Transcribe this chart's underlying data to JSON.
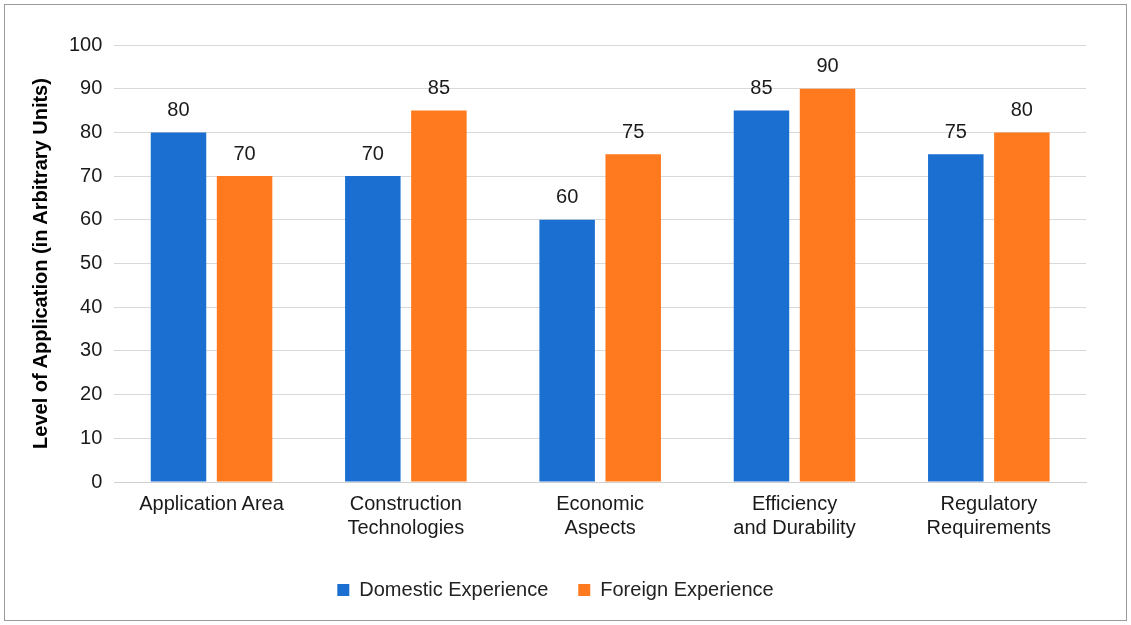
{
  "chart_data": {
    "type": "bar",
    "ylabel": "Level of Application (in Arbitrary Units)",
    "categories": [
      "Application Area",
      "Construction Technologies",
      "Economic Aspects",
      "Efficiency and Durability",
      "Regulatory Requirements"
    ],
    "series": [
      {
        "name": "Domestic Experience",
        "color": "#1a6fd0",
        "values": [
          80,
          70,
          60,
          85,
          75
        ]
      },
      {
        "name": "Foreign Experience",
        "color": "#ff7a1f",
        "values": [
          70,
          85,
          75,
          90,
          80
        ]
      }
    ],
    "ylim": [
      0,
      100
    ],
    "yticks": [
      0,
      10,
      20,
      30,
      40,
      50,
      60,
      70,
      80,
      90,
      100
    ],
    "grid": "y",
    "legend": "bottom",
    "data_labels": true
  }
}
